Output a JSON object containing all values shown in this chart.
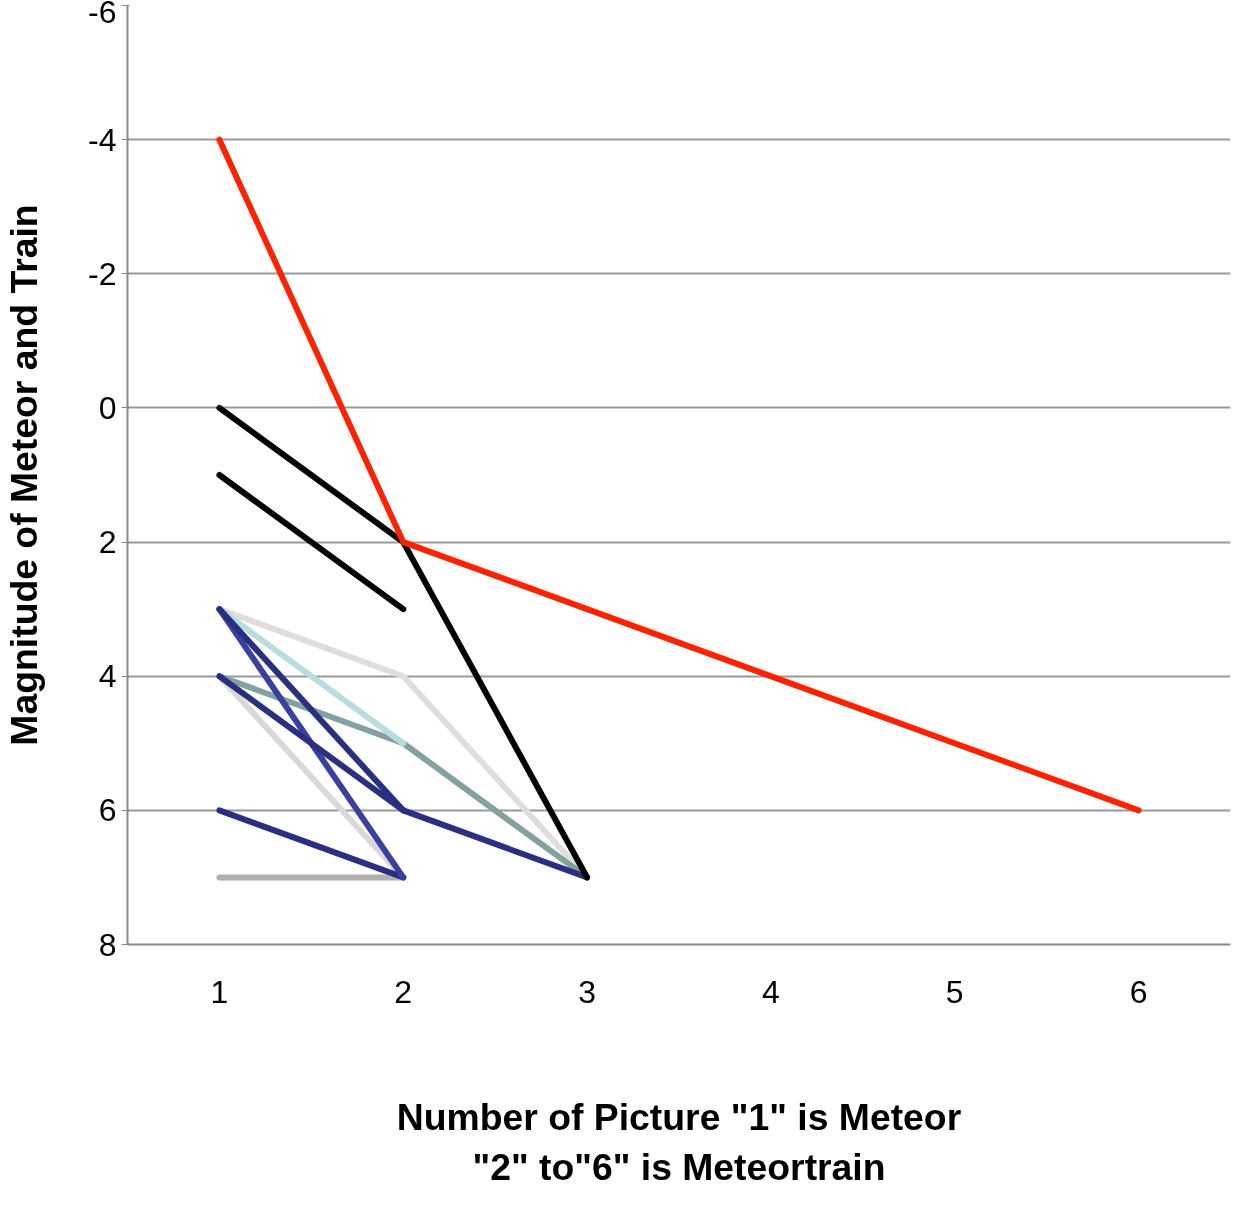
{
  "chart_data": {
    "type": "line",
    "xlabel": "Number of Picture \"1\" is Meteor\n\"2\" to\"6\" is Meteortrain",
    "ylabel": "Magnitude of Meteor and Train",
    "xlim": [
      0.5,
      6.5
    ],
    "xticks": [
      1,
      2,
      3,
      4,
      5,
      6
    ],
    "ylim": [
      8,
      -6
    ],
    "yticks": [
      -6,
      -4,
      -2,
      0,
      2,
      4,
      6,
      8
    ],
    "grid": "y",
    "marker": "none",
    "line_style": "solid",
    "series": [
      {
        "color": "#b0b0b0",
        "x": [
          1,
          2
        ],
        "values": [
          7,
          7
        ]
      },
      {
        "color": "#d9d9d9",
        "x": [
          1,
          2
        ],
        "values": [
          4,
          7
        ]
      },
      {
        "color": "#dedede",
        "x": [
          1,
          2,
          3
        ],
        "values": [
          3,
          4,
          7
        ]
      },
      {
        "color": "#84a09f",
        "x": [
          1,
          2,
          3
        ],
        "values": [
          4,
          5,
          7
        ]
      },
      {
        "color": "#b8dcdf",
        "x": [
          1,
          2
        ],
        "values": [
          3,
          5
        ]
      },
      {
        "color": "#2b2f82",
        "x": [
          1,
          2
        ],
        "values": [
          6,
          7
        ]
      },
      {
        "color": "#3a40a0",
        "x": [
          1,
          2
        ],
        "values": [
          3,
          7
        ]
      },
      {
        "color": "#2b2f82",
        "x": [
          1,
          2
        ],
        "values": [
          3,
          6
        ]
      },
      {
        "color": "#2b2f82",
        "x": [
          1,
          2,
          3
        ],
        "values": [
          4,
          6,
          7
        ]
      },
      {
        "color": "#000000",
        "x": [
          1,
          2
        ],
        "values": [
          1,
          3
        ]
      },
      {
        "color": "#000000",
        "x": [
          1,
          2,
          3
        ],
        "values": [
          0,
          2,
          7
        ]
      },
      {
        "color": "#ff2200",
        "x": [
          1,
          2,
          6
        ],
        "values": [
          -4,
          2,
          6
        ]
      }
    ]
  }
}
